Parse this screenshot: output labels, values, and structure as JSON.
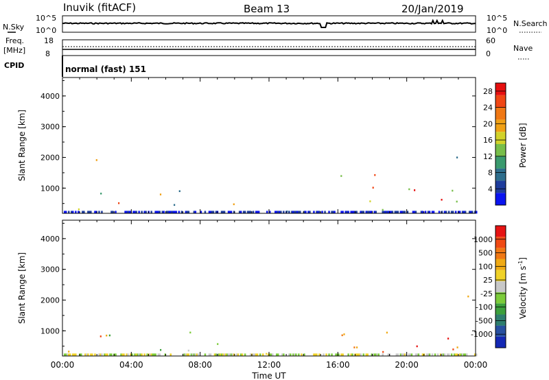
{
  "header": {
    "station": "Inuvik (fitACF)",
    "beam": "Beam 13",
    "date": "20/Jan/2019"
  },
  "top_panels": {
    "nsky_label": "N.Sky",
    "nsky_ticks": [
      "10^5",
      "10^0"
    ],
    "nsearch_label": "N.Search",
    "nsearch_ticks": [
      "10^5",
      "10^0"
    ],
    "freq_label_1": "Freq.",
    "freq_label_2": "[MHz]",
    "freq_ticks": [
      "18",
      "8"
    ],
    "nave_label": "Nave",
    "nave_ticks": [
      "60",
      "0"
    ],
    "cpid_label": "CPID",
    "cpid_text": "normal (fast) 151"
  },
  "chart_data": [
    {
      "type": "heatmap",
      "panel": "power",
      "ylabel": "Slant Range [km]",
      "y_ticks": [
        1000,
        2000,
        3000,
        4000
      ],
      "ylim": [
        180,
        4600
      ],
      "xlabel": "Time UT",
      "x_tick_labels": [
        "00:00",
        "04:00",
        "08:00",
        "12:00",
        "16:00",
        "20:00",
        "00:00"
      ],
      "xlim_hours": [
        0,
        24
      ],
      "colorbar": {
        "label": "Power [dB]",
        "ticks": [
          "4",
          "8",
          "12",
          "16",
          "20",
          "24",
          "28"
        ],
        "colors": [
          "#0a14f0",
          "#1e3c9c",
          "#2e6e8c",
          "#3a9a6e",
          "#78be4a",
          "#d2d22a",
          "#f0a014",
          "#f07814",
          "#f04614",
          "#e60f0f"
        ]
      },
      "regions": [
        {
          "t": [
            0.3,
            1.3
          ],
          "r": [
            200,
            1200
          ],
          "c": [
            4,
            5,
            6,
            3
          ]
        },
        {
          "t": [
            1.3,
            2.6
          ],
          "r": [
            700,
            2000
          ],
          "c": [
            4,
            5,
            3,
            6
          ]
        },
        {
          "t": [
            2.5,
            4.2
          ],
          "r": [
            500,
            1100
          ],
          "c": [
            8,
            9,
            7,
            6
          ]
        },
        {
          "t": [
            4.0,
            5.8
          ],
          "r": [
            300,
            900
          ],
          "c": [
            4,
            5,
            6
          ]
        },
        {
          "t": [
            6.0,
            8.0
          ],
          "r": [
            300,
            1100
          ],
          "c": [
            3,
            2,
            4,
            5
          ]
        },
        {
          "t": [
            7.8,
            10.2
          ],
          "r": [
            200,
            700
          ],
          "c": [
            6,
            8,
            9,
            7
          ]
        },
        {
          "t": [
            10.0,
            14.0
          ],
          "r": [
            200,
            400
          ],
          "c": [
            2,
            1,
            3
          ]
        },
        {
          "t": [
            14.8,
            15.1
          ],
          "r": [
            600,
            2100
          ],
          "c": [
            2,
            3,
            4
          ]
        },
        {
          "t": [
            15.3,
            18.6
          ],
          "r": [
            300,
            1600
          ],
          "c": [
            3,
            4,
            5,
            8
          ]
        },
        {
          "t": [
            18.8,
            20.2
          ],
          "r": [
            400,
            1300
          ],
          "c": [
            4,
            5,
            6
          ]
        },
        {
          "t": [
            20.4,
            22.9
          ],
          "r": [
            500,
            1300
          ],
          "c": [
            6,
            7,
            8,
            9
          ]
        },
        {
          "t": [
            22.6,
            23.8
          ],
          "r": [
            300,
            2200
          ],
          "c": [
            2,
            3,
            4,
            5
          ]
        }
      ]
    },
    {
      "type": "heatmap",
      "panel": "velocity",
      "ylabel": "Slant Range [km]",
      "y_ticks": [
        1000,
        2000,
        3000,
        4000
      ],
      "ylim": [
        180,
        4600
      ],
      "xlabel": "Time UT",
      "x_tick_labels": [
        "00:00",
        "04:00",
        "08:00",
        "12:00",
        "16:00",
        "20:00",
        "00:00"
      ],
      "xlim_hours": [
        0,
        24
      ],
      "colorbar": {
        "label": "Velocity [m s^-1]",
        "ticks": [
          "1000",
          "500",
          "100",
          "25",
          "-25",
          "-100",
          "-500",
          "-1000"
        ],
        "colors": [
          "#1428b4",
          "#2850a0",
          "#2e7e6e",
          "#3ca03c",
          "#7ccc3a",
          "#c8c8c8",
          "#f0d228",
          "#f0aa14",
          "#f07814",
          "#f04a14",
          "#e61414"
        ]
      },
      "regions": [
        {
          "t": [
            0.3,
            1.3
          ],
          "r": [
            200,
            1200
          ],
          "c": [
            6,
            7,
            4
          ]
        },
        {
          "t": [
            1.3,
            2.8
          ],
          "r": [
            800,
            2100
          ],
          "c": [
            8,
            9,
            7
          ]
        },
        {
          "t": [
            2.5,
            4.2
          ],
          "r": [
            500,
            1100
          ],
          "c": [
            4,
            3,
            5
          ]
        },
        {
          "t": [
            4.0,
            5.8
          ],
          "r": [
            300,
            900
          ],
          "c": [
            4,
            3,
            5
          ]
        },
        {
          "t": [
            6.0,
            8.0
          ],
          "r": [
            300,
            1100
          ],
          "c": [
            5,
            4,
            3
          ]
        },
        {
          "t": [
            7.8,
            10.2
          ],
          "r": [
            200,
            700
          ],
          "c": [
            3,
            4,
            2
          ]
        },
        {
          "t": [
            10.0,
            14.0
          ],
          "r": [
            200,
            400
          ],
          "c": [
            6,
            7
          ]
        },
        {
          "t": [
            14.8,
            15.1
          ],
          "r": [
            600,
            2100
          ],
          "c": [
            2,
            3
          ]
        },
        {
          "t": [
            15.3,
            18.6
          ],
          "r": [
            300,
            1600
          ],
          "c": [
            7,
            8,
            9
          ]
        },
        {
          "t": [
            18.8,
            20.2
          ],
          "r": [
            400,
            1300
          ],
          "c": [
            7,
            8
          ]
        },
        {
          "t": [
            20.4,
            22.9
          ],
          "r": [
            500,
            1300
          ],
          "c": [
            8,
            9,
            10
          ]
        },
        {
          "t": [
            22.6,
            23.8
          ],
          "r": [
            300,
            2200
          ],
          "c": [
            7,
            8,
            9
          ]
        }
      ]
    }
  ]
}
